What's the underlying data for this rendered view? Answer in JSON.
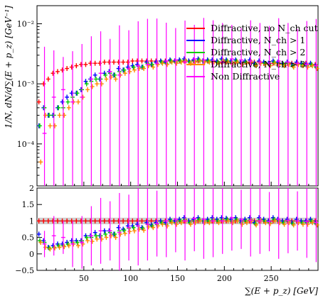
{
  "chart_data": {
    "type": "scatter",
    "xlabel": "∑(E + p_z) [GeV]",
    "ylabel": "1/N, dN/d∑(E + p_z) [GeV⁻¹]",
    "xlim": [
      0,
      300
    ],
    "x_ticks": [
      "50",
      "100",
      "150",
      "200",
      "250"
    ],
    "main": {
      "ylim": [
        2e-05,
        0.02
      ],
      "yscale": "log",
      "y_ticks": [
        {
          "value": 0.0001,
          "label": "10⁻⁴"
        },
        {
          "value": 0.001,
          "label": "10⁻³"
        },
        {
          "value": 0.01,
          "label": "10⁻²"
        }
      ]
    },
    "ratio": {
      "ylim": [
        -0.5,
        2
      ],
      "y_ticks": [
        "-0.5",
        "0",
        "0.5",
        "1",
        "1.5",
        "2"
      ],
      "reference_line": 1,
      "uncertainty_band": [
        0.9,
        1.1
      ]
    },
    "legend": {
      "position": "top-right",
      "entries": [
        "Diffractive, no N_ch cut",
        "Diffractive, N_ch > 1",
        "Diffractive, N_ch > 2",
        "Diffractive, N_ch > 3",
        "Non Diffractive"
      ]
    },
    "series": [
      {
        "name": "Diffractive, no N_ch cut",
        "color": "#ff0000",
        "x": [
          2,
          7,
          12,
          17,
          22,
          27,
          32,
          37,
          42,
          47,
          52,
          57,
          62,
          67,
          72,
          77,
          82,
          87,
          92,
          97,
          102,
          107,
          112,
          117,
          122,
          127,
          132,
          137,
          142,
          147,
          152,
          157,
          162,
          167,
          172,
          177,
          182,
          187,
          192,
          197,
          202,
          207,
          212,
          217,
          222,
          227,
          232,
          237,
          242,
          247,
          252,
          257,
          262,
          267,
          272,
          277,
          282,
          287,
          292,
          297
        ],
        "y": [
          0.0005,
          0.001,
          0.0012,
          0.0015,
          0.0016,
          0.0017,
          0.0018,
          0.0019,
          0.002,
          0.0021,
          0.0021,
          0.0022,
          0.0022,
          0.0022,
          0.0023,
          0.0023,
          0.0023,
          0.0023,
          0.0023,
          0.0023,
          0.0024,
          0.0024,
          0.0024,
          0.0024,
          0.0024,
          0.0024,
          0.0024,
          0.0024,
          0.0024,
          0.0024,
          0.0024,
          0.0024,
          0.0024,
          0.0024,
          0.0024,
          0.0024,
          0.0024,
          0.0023,
          0.0023,
          0.0023,
          0.0023,
          0.0023,
          0.0023,
          0.0023,
          0.0023,
          0.0023,
          0.0023,
          0.0023,
          0.0022,
          0.0022,
          0.0022,
          0.0022,
          0.0022,
          0.0022,
          0.0022,
          0.0022,
          0.0022,
          0.0022,
          0.0021,
          0.0021
        ],
        "ratio": [
          1,
          1,
          1,
          1,
          1,
          1,
          1,
          1,
          1,
          1,
          1,
          1,
          1,
          1,
          1,
          1,
          1,
          1,
          1,
          1,
          1,
          1,
          1,
          1,
          1,
          1,
          1,
          1,
          1,
          1,
          1,
          1,
          1,
          1,
          1,
          1,
          1,
          1,
          1,
          1,
          1,
          1,
          1,
          1,
          1,
          1,
          1,
          1,
          1,
          1,
          1,
          1,
          1,
          1,
          1,
          1,
          1,
          1,
          1,
          1
        ]
      },
      {
        "name": "Diffractive, N_ch > 1",
        "color": "#0000ff",
        "x": [
          2,
          7,
          12,
          17,
          22,
          27,
          32,
          37,
          42,
          47,
          52,
          57,
          62,
          67,
          72,
          77,
          82,
          87,
          92,
          97,
          102,
          107,
          112,
          117,
          122,
          127,
          132,
          137,
          142,
          147,
          152,
          157,
          162,
          167,
          172,
          177,
          182,
          187,
          192,
          197,
          202,
          207,
          212,
          217,
          222,
          227,
          232,
          237,
          242,
          247,
          252,
          257,
          262,
          267,
          272,
          277,
          282,
          287,
          292,
          297
        ],
        "y": [
          0.0002,
          0.0004,
          0.0003,
          0.0003,
          0.0004,
          0.0005,
          0.0006,
          0.0007,
          0.0007,
          0.0008,
          0.0011,
          0.0012,
          0.0014,
          0.0012,
          0.0015,
          0.0016,
          0.0014,
          0.0018,
          0.0017,
          0.0019,
          0.002,
          0.0021,
          0.0019,
          0.0023,
          0.0021,
          0.0023,
          0.0024,
          0.0023,
          0.0025,
          0.0024,
          0.0025,
          0.0026,
          0.0024,
          0.0025,
          0.0026,
          0.0024,
          0.0025,
          0.0025,
          0.0024,
          0.0026,
          0.0025,
          0.0024,
          0.0025,
          0.0023,
          0.0024,
          0.0025,
          0.0022,
          0.0024,
          0.0023,
          0.0022,
          0.0024,
          0.0023,
          0.0022,
          0.0023,
          0.0021,
          0.0023,
          0.0022,
          0.0021,
          0.0022,
          0.002
        ],
        "ratio": [
          0.6,
          0.4,
          0.2,
          0.25,
          0.3,
          0.3,
          0.35,
          0.4,
          0.4,
          0.4,
          0.55,
          0.55,
          0.65,
          0.55,
          0.7,
          0.7,
          0.6,
          0.8,
          0.75,
          0.85,
          0.85,
          0.9,
          0.8,
          0.95,
          0.88,
          0.95,
          1.0,
          0.95,
          1.05,
          1.0,
          1.05,
          1.1,
          1.0,
          1.05,
          1.1,
          1.0,
          1.05,
          1.1,
          1.05,
          1.1,
          1.08,
          1.05,
          1.1,
          1.0,
          1.05,
          1.1,
          0.95,
          1.1,
          1.05,
          1.0,
          1.1,
          1.05,
          1.0,
          1.05,
          0.95,
          1.05,
          1.0,
          1.0,
          1.05,
          0.95
        ]
      },
      {
        "name": "Diffractive, N_ch > 2",
        "color": "#00cc00",
        "x": [
          3,
          8,
          13,
          18,
          23,
          28,
          33,
          38,
          43,
          48,
          53,
          58,
          63,
          68,
          73,
          78,
          83,
          88,
          93,
          98,
          103,
          108,
          113,
          118,
          123,
          128,
          133,
          138,
          143,
          148,
          153,
          158,
          163,
          168,
          173,
          178,
          183,
          188,
          193,
          198,
          203,
          208,
          213,
          218,
          223,
          228,
          233,
          238,
          243,
          248,
          253,
          258,
          263,
          268,
          273,
          278,
          283,
          288,
          293,
          298
        ],
        "y": [
          0.0002,
          0.0004,
          0.0003,
          0.0003,
          0.0004,
          0.0004,
          0.0005,
          0.0006,
          0.0007,
          0.0008,
          0.001,
          0.0011,
          0.0012,
          0.0012,
          0.0014,
          0.0015,
          0.0014,
          0.0016,
          0.0017,
          0.0018,
          0.0019,
          0.002,
          0.0019,
          0.0022,
          0.0021,
          0.0022,
          0.0023,
          0.0022,
          0.0024,
          0.0023,
          0.0024,
          0.0025,
          0.0023,
          0.0024,
          0.0025,
          0.0024,
          0.0024,
          0.0024,
          0.0023,
          0.0025,
          0.0024,
          0.0023,
          0.0024,
          0.0022,
          0.0023,
          0.0024,
          0.0021,
          0.0023,
          0.0022,
          0.0021,
          0.0023,
          0.0022,
          0.0021,
          0.0022,
          0.002,
          0.0022,
          0.0021,
          0.002,
          0.0021,
          0.0019
        ],
        "ratio": [
          0.4,
          0.35,
          0.18,
          0.2,
          0.25,
          0.25,
          0.3,
          0.35,
          0.35,
          0.4,
          0.5,
          0.5,
          0.55,
          0.55,
          0.6,
          0.65,
          0.6,
          0.7,
          0.72,
          0.78,
          0.8,
          0.85,
          0.78,
          0.9,
          0.85,
          0.9,
          0.95,
          0.9,
          1.0,
          0.95,
          1.0,
          1.05,
          0.95,
          1.0,
          1.05,
          1.0,
          1.0,
          1.05,
          1.0,
          1.05,
          1.05,
          1.0,
          1.05,
          0.95,
          1.0,
          1.05,
          0.92,
          1.05,
          1.0,
          0.95,
          1.05,
          1.0,
          0.95,
          1.0,
          0.92,
          1.0,
          0.95,
          0.95,
          1.0,
          0.92
        ]
      },
      {
        "name": "Diffractive, N_ch > 3",
        "color": "#ff8800",
        "x": [
          4,
          9,
          14,
          19,
          24,
          29,
          34,
          39,
          44,
          49,
          54,
          59,
          64,
          69,
          74,
          79,
          84,
          89,
          94,
          99,
          104,
          109,
          114,
          119,
          124,
          129,
          134,
          139,
          144,
          149,
          154,
          159,
          164,
          169,
          174,
          179,
          184,
          189,
          194,
          199,
          204,
          209,
          214,
          219,
          224,
          229,
          234,
          239,
          244,
          249,
          254,
          259,
          264,
          269,
          274,
          279,
          284,
          289,
          294,
          299
        ],
        "y": [
          5e-05,
          0.0003,
          0.0002,
          0.0002,
          0.0003,
          0.0003,
          0.0004,
          0.0005,
          0.0005,
          0.0006,
          0.0008,
          0.0009,
          0.001,
          0.001,
          0.0012,
          0.0013,
          0.0012,
          0.0014,
          0.0015,
          0.0016,
          0.0017,
          0.0018,
          0.0018,
          0.002,
          0.0019,
          0.0021,
          0.0022,
          0.0021,
          0.0023,
          0.0022,
          0.0023,
          0.0024,
          0.0022,
          0.0023,
          0.0024,
          0.0023,
          0.0023,
          0.0023,
          0.0022,
          0.0024,
          0.0023,
          0.0022,
          0.0023,
          0.0021,
          0.0022,
          0.0023,
          0.002,
          0.0022,
          0.0021,
          0.002,
          0.0022,
          0.0021,
          0.002,
          0.0021,
          0.0019,
          0.0021,
          0.002,
          0.0019,
          0.002,
          0.0018
        ],
        "ratio": [
          0.35,
          0.2,
          0.15,
          0.18,
          0.2,
          0.22,
          0.25,
          0.3,
          0.25,
          0.3,
          0.4,
          0.38,
          0.45,
          0.45,
          0.5,
          0.55,
          0.5,
          0.6,
          0.62,
          0.68,
          0.7,
          0.75,
          0.72,
          0.82,
          0.8,
          0.85,
          0.9,
          0.85,
          0.95,
          0.9,
          0.95,
          1.0,
          0.9,
          0.95,
          1.0,
          0.95,
          0.95,
          1.0,
          0.95,
          1.0,
          1.0,
          0.95,
          1.0,
          0.9,
          0.95,
          1.0,
          0.88,
          1.0,
          0.95,
          0.92,
          1.0,
          0.95,
          0.9,
          0.95,
          0.88,
          0.95,
          0.9,
          0.9,
          0.95,
          0.88
        ]
      },
      {
        "name": "Non Diffractive",
        "color": "#ff00ff",
        "x": [
          8,
          18,
          28,
          38,
          48,
          58,
          68,
          78,
          88,
          98,
          108,
          118,
          128,
          138,
          148,
          158,
          168,
          178,
          188,
          198,
          208,
          218,
          228,
          238,
          248,
          258,
          268,
          278,
          288,
          298
        ],
        "y": [
          0.00015,
          0.0006,
          0.0008,
          0.0005,
          0.0006,
          0.0012,
          0.0015,
          0.0016,
          0.0014,
          0.0018,
          0.002,
          0.0021,
          0.0022,
          0.0024,
          0.0025,
          0.0023,
          0.0026,
          0.0025,
          0.0024,
          0.0023,
          0.0026,
          0.0025,
          0.0024,
          0.0023,
          0.0022,
          0.0024,
          0.0023,
          0.0022,
          0.0021,
          0.002
        ],
        "ratio": [
          0.3,
          0.55,
          0.5,
          0.3,
          0.35,
          0.55,
          0.7,
          0.7,
          0.65,
          0.8,
          0.85,
          0.9,
          0.92,
          1.0,
          1.05,
          1.0,
          1.08,
          1.05,
          1.0,
          1.0,
          1.1,
          1.05,
          1.02,
          1.0,
          0.98,
          1.05,
          1.02,
          1.0,
          0.98,
          0.95
        ],
        "err_hi": [
          0.004,
          0.003,
          0.002,
          0.003,
          0.004,
          0.005,
          0.006,
          0.004,
          0.008,
          0.006,
          0.009,
          0.01,
          0.01,
          0.008,
          0.006,
          0.009,
          0.007,
          0.01,
          0.009,
          0.008,
          0.007,
          0.006,
          0.009,
          0.008,
          0.007,
          0.01,
          0.008,
          0.006,
          0.009,
          0.01
        ],
        "ratio_err": [
          0.4,
          0.6,
          0.5,
          0.7,
          0.8,
          0.9,
          1.0,
          0.9,
          1.2,
          1.0,
          1.2,
          1.1,
          1.0,
          1.1,
          1.0,
          1.2,
          1.0,
          1.2,
          1.1,
          1.0,
          1.0,
          0.9,
          1.1,
          1.0,
          0.9,
          1.2,
          1.0,
          0.9,
          1.1,
          1.2
        ]
      }
    ]
  }
}
